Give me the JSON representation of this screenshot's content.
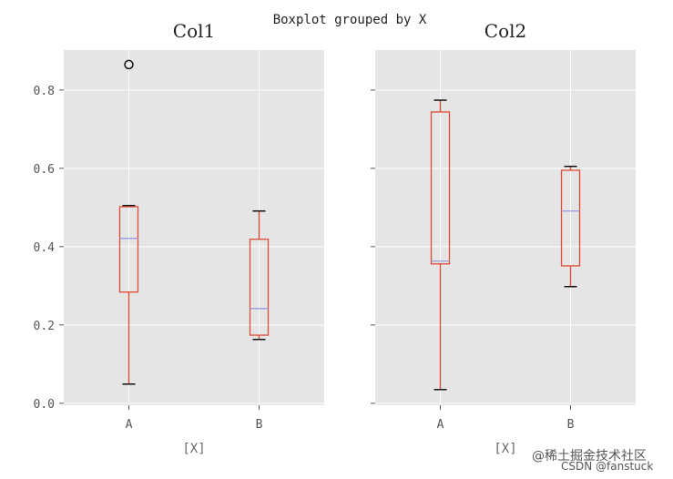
{
  "chart_data": {
    "type": "boxplot",
    "suptitle": "Boxplot grouped by X",
    "ylim": [
      -0.005,
      0.902
    ],
    "yticks": [
      "0.0",
      "0.2",
      "0.4",
      "0.6",
      "0.8"
    ],
    "ytick_values": [
      0,
      0.2,
      0.4,
      0.6,
      0.8
    ],
    "grid": true,
    "subplots": [
      {
        "title": "Col1",
        "xlabel": "[X]",
        "categories": [
          "A",
          "B"
        ],
        "boxes": [
          {
            "whislo": 0.049,
            "q1": 0.284,
            "med": 0.421,
            "q3": 0.502,
            "whishi": 0.505,
            "fliers": [
              0.865
            ]
          },
          {
            "whislo": 0.163,
            "q1": 0.174,
            "med": 0.242,
            "q3": 0.419,
            "whishi": 0.491,
            "fliers": []
          }
        ]
      },
      {
        "title": "Col2",
        "xlabel": "[X]",
        "categories": [
          "A",
          "B"
        ],
        "boxes": [
          {
            "whislo": 0.035,
            "q1": 0.356,
            "med": 0.363,
            "q3": 0.744,
            "whishi": 0.774,
            "fliers": []
          },
          {
            "whislo": 0.298,
            "q1": 0.351,
            "med": 0.491,
            "q3": 0.595,
            "whishi": 0.605,
            "fliers": []
          }
        ]
      }
    ],
    "colors": {
      "box": "#e24a33",
      "median": "#8eba42",
      "median_line": "#9999dd",
      "bg": "#e5e5e5",
      "grid": "#ffffff"
    }
  },
  "watermark": {
    "line1": "@稀土掘金技术社区",
    "line2": "CSDN @fanstuck"
  }
}
